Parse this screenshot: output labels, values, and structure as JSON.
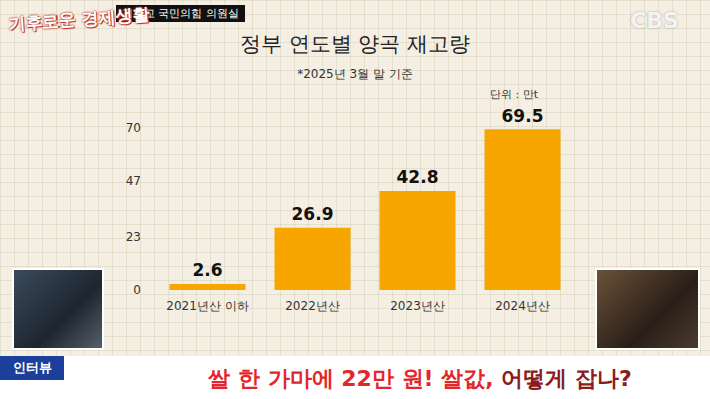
{
  "source": "김선교 국민의힘 의원실",
  "program": "기후로운 경제생활",
  "channel": "CBS",
  "caption": {
    "tag": "인터뷰",
    "parts": [
      "쌀 한 가마에 22만 원!",
      "쌀값,",
      "어떻게 잡나?"
    ]
  },
  "chart_data": {
    "type": "bar",
    "title": "정부 연도별 양곡 재고량",
    "subtitle": "*2025년 3월 말 기준",
    "annotations": [
      "단위 : 만t"
    ],
    "categories": [
      "2021년산 이하",
      "2022년산",
      "2023년산",
      "2024년산"
    ],
    "values": [
      2.6,
      26.9,
      42.8,
      69.5
    ],
    "color": "#f7a600",
    "ylim": [
      0,
      70
    ],
    "yticks": [
      0,
      23,
      47,
      70
    ],
    "grid": false,
    "data_labels": true
  }
}
